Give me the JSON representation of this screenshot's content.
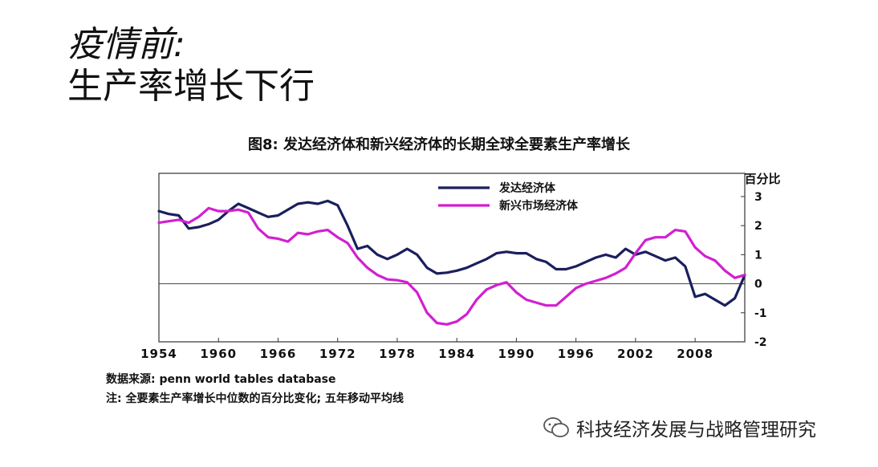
{
  "slide": {
    "title_line1": "疫情前:",
    "title_line2": "生产率增长下行"
  },
  "chart_data": {
    "type": "line",
    "title": "图8: 发达经济体和新兴经济体的长期全球全要素生产率增长",
    "ylabel": "百分比",
    "xlim": [
      1954,
      2013
    ],
    "ylim": [
      -2,
      3.8
    ],
    "x_ticks": [
      1954,
      1960,
      1966,
      1972,
      1978,
      1984,
      1990,
      1996,
      2002,
      2008
    ],
    "y_ticks": [
      3,
      2,
      1,
      0,
      -1,
      -2
    ],
    "legend_position": "top-center",
    "series": [
      {
        "name": "发达经济体",
        "color": "#1a1f5c",
        "points": [
          [
            1954,
            2.5
          ],
          [
            1955,
            2.4
          ],
          [
            1956,
            2.35
          ],
          [
            1957,
            1.9
          ],
          [
            1958,
            1.95
          ],
          [
            1959,
            2.05
          ],
          [
            1960,
            2.2
          ],
          [
            1961,
            2.5
          ],
          [
            1962,
            2.75
          ],
          [
            1963,
            2.6
          ],
          [
            1964,
            2.45
          ],
          [
            1965,
            2.3
          ],
          [
            1966,
            2.35
          ],
          [
            1967,
            2.55
          ],
          [
            1968,
            2.75
          ],
          [
            1969,
            2.8
          ],
          [
            1970,
            2.75
          ],
          [
            1971,
            2.85
          ],
          [
            1972,
            2.7
          ],
          [
            1973,
            2.0
          ],
          [
            1974,
            1.2
          ],
          [
            1975,
            1.3
          ],
          [
            1976,
            1.0
          ],
          [
            1977,
            0.85
          ],
          [
            1978,
            1.0
          ],
          [
            1979,
            1.2
          ],
          [
            1980,
            1.0
          ],
          [
            1981,
            0.55
          ],
          [
            1982,
            0.35
          ],
          [
            1983,
            0.38
          ],
          [
            1984,
            0.45
          ],
          [
            1985,
            0.55
          ],
          [
            1986,
            0.7
          ],
          [
            1987,
            0.85
          ],
          [
            1988,
            1.05
          ],
          [
            1989,
            1.1
          ],
          [
            1990,
            1.05
          ],
          [
            1991,
            1.05
          ],
          [
            1992,
            0.85
          ],
          [
            1993,
            0.75
          ],
          [
            1994,
            0.5
          ],
          [
            1995,
            0.5
          ],
          [
            1996,
            0.6
          ],
          [
            1997,
            0.75
          ],
          [
            1998,
            0.9
          ],
          [
            1999,
            1.0
          ],
          [
            2000,
            0.9
          ],
          [
            2001,
            1.2
          ],
          [
            2002,
            1.0
          ],
          [
            2003,
            1.1
          ],
          [
            2004,
            0.95
          ],
          [
            2005,
            0.8
          ],
          [
            2006,
            0.9
          ],
          [
            2007,
            0.6
          ],
          [
            2008,
            -0.45
          ],
          [
            2009,
            -0.35
          ],
          [
            2010,
            -0.55
          ],
          [
            2011,
            -0.75
          ],
          [
            2012,
            -0.5
          ],
          [
            2013,
            0.3
          ]
        ]
      },
      {
        "name": "新兴市场经济体",
        "color": "#d21fd0",
        "points": [
          [
            1954,
            2.1
          ],
          [
            1955,
            2.15
          ],
          [
            1956,
            2.2
          ],
          [
            1957,
            2.1
          ],
          [
            1958,
            2.3
          ],
          [
            1959,
            2.6
          ],
          [
            1960,
            2.5
          ],
          [
            1961,
            2.5
          ],
          [
            1962,
            2.55
          ],
          [
            1963,
            2.45
          ],
          [
            1964,
            1.9
          ],
          [
            1965,
            1.6
          ],
          [
            1966,
            1.55
          ],
          [
            1967,
            1.45
          ],
          [
            1968,
            1.75
          ],
          [
            1969,
            1.7
          ],
          [
            1970,
            1.8
          ],
          [
            1971,
            1.85
          ],
          [
            1972,
            1.6
          ],
          [
            1973,
            1.4
          ],
          [
            1974,
            0.9
          ],
          [
            1975,
            0.55
          ],
          [
            1976,
            0.3
          ],
          [
            1977,
            0.15
          ],
          [
            1978,
            0.12
          ],
          [
            1979,
            0.05
          ],
          [
            1980,
            -0.3
          ],
          [
            1981,
            -1.0
          ],
          [
            1982,
            -1.35
          ],
          [
            1983,
            -1.4
          ],
          [
            1984,
            -1.3
          ],
          [
            1985,
            -1.05
          ],
          [
            1986,
            -0.55
          ],
          [
            1987,
            -0.2
          ],
          [
            1988,
            -0.05
          ],
          [
            1989,
            0.05
          ],
          [
            1990,
            -0.3
          ],
          [
            1991,
            -0.55
          ],
          [
            1992,
            -0.65
          ],
          [
            1993,
            -0.75
          ],
          [
            1994,
            -0.75
          ],
          [
            1995,
            -0.45
          ],
          [
            1996,
            -0.15
          ],
          [
            1997,
            0.0
          ],
          [
            1998,
            0.1
          ],
          [
            1999,
            0.2
          ],
          [
            2000,
            0.35
          ],
          [
            2001,
            0.55
          ],
          [
            2002,
            1.05
          ],
          [
            2003,
            1.5
          ],
          [
            2004,
            1.6
          ],
          [
            2005,
            1.6
          ],
          [
            2006,
            1.85
          ],
          [
            2007,
            1.8
          ],
          [
            2008,
            1.25
          ],
          [
            2009,
            0.95
          ],
          [
            2010,
            0.8
          ],
          [
            2011,
            0.45
          ],
          [
            2012,
            0.2
          ],
          [
            2013,
            0.3
          ]
        ]
      }
    ]
  },
  "footnotes": {
    "source": "数据来源: penn world tables database",
    "note": "注: 全要素生产率增长中位数的百分比变化; 五年移动平均线"
  },
  "watermark": {
    "text": "科技经济发展与战略管理研究"
  }
}
